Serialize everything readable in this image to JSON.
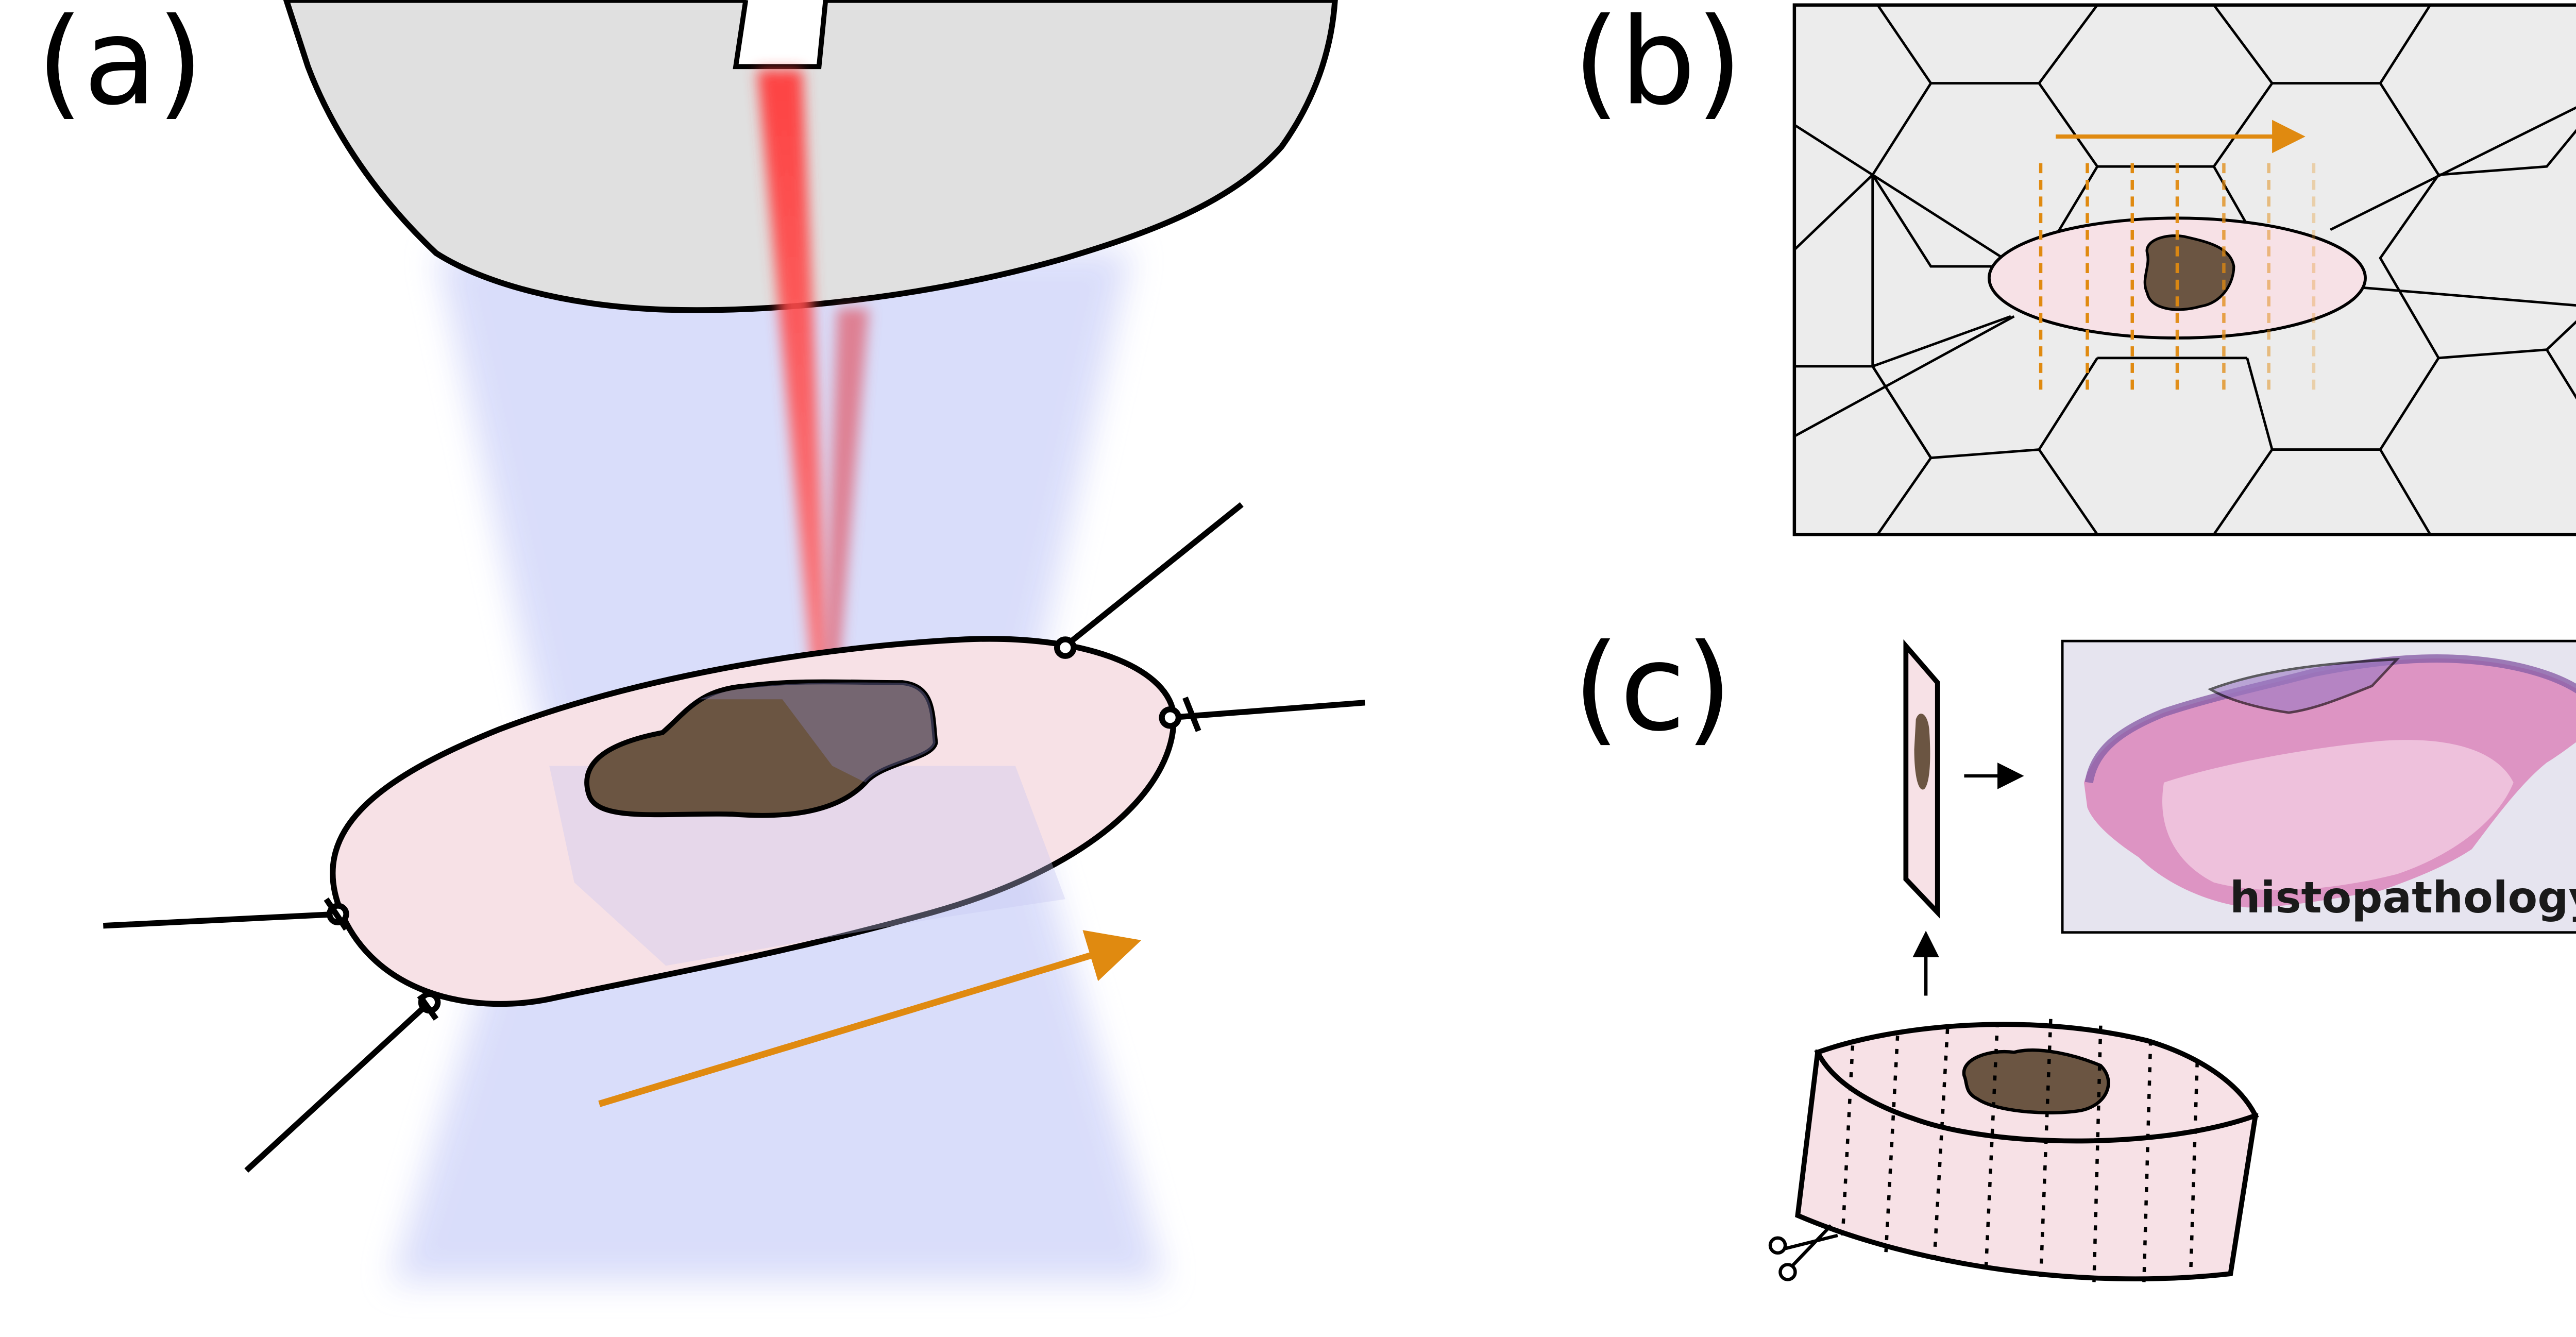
{
  "panels": {
    "a": {
      "label": "(a)"
    },
    "b": {
      "label": "(b)"
    },
    "c": {
      "label": "(c)",
      "histology_label": "histopathology"
    }
  },
  "colors": {
    "background": "#ffffff",
    "microscope_body": "#e0e0e0",
    "laser_beam": "#ff4a4a",
    "illumination_cone": "#d8dcfa",
    "specimen_fill": "#f7e1e6",
    "lesion_fill": "#6b5542",
    "scan_arrow": "#e08a10",
    "tissue_mesh_background": "#ececec",
    "histology_stain": "#dc8fc0"
  },
  "icons": {
    "scissors": "scissors-icon"
  }
}
